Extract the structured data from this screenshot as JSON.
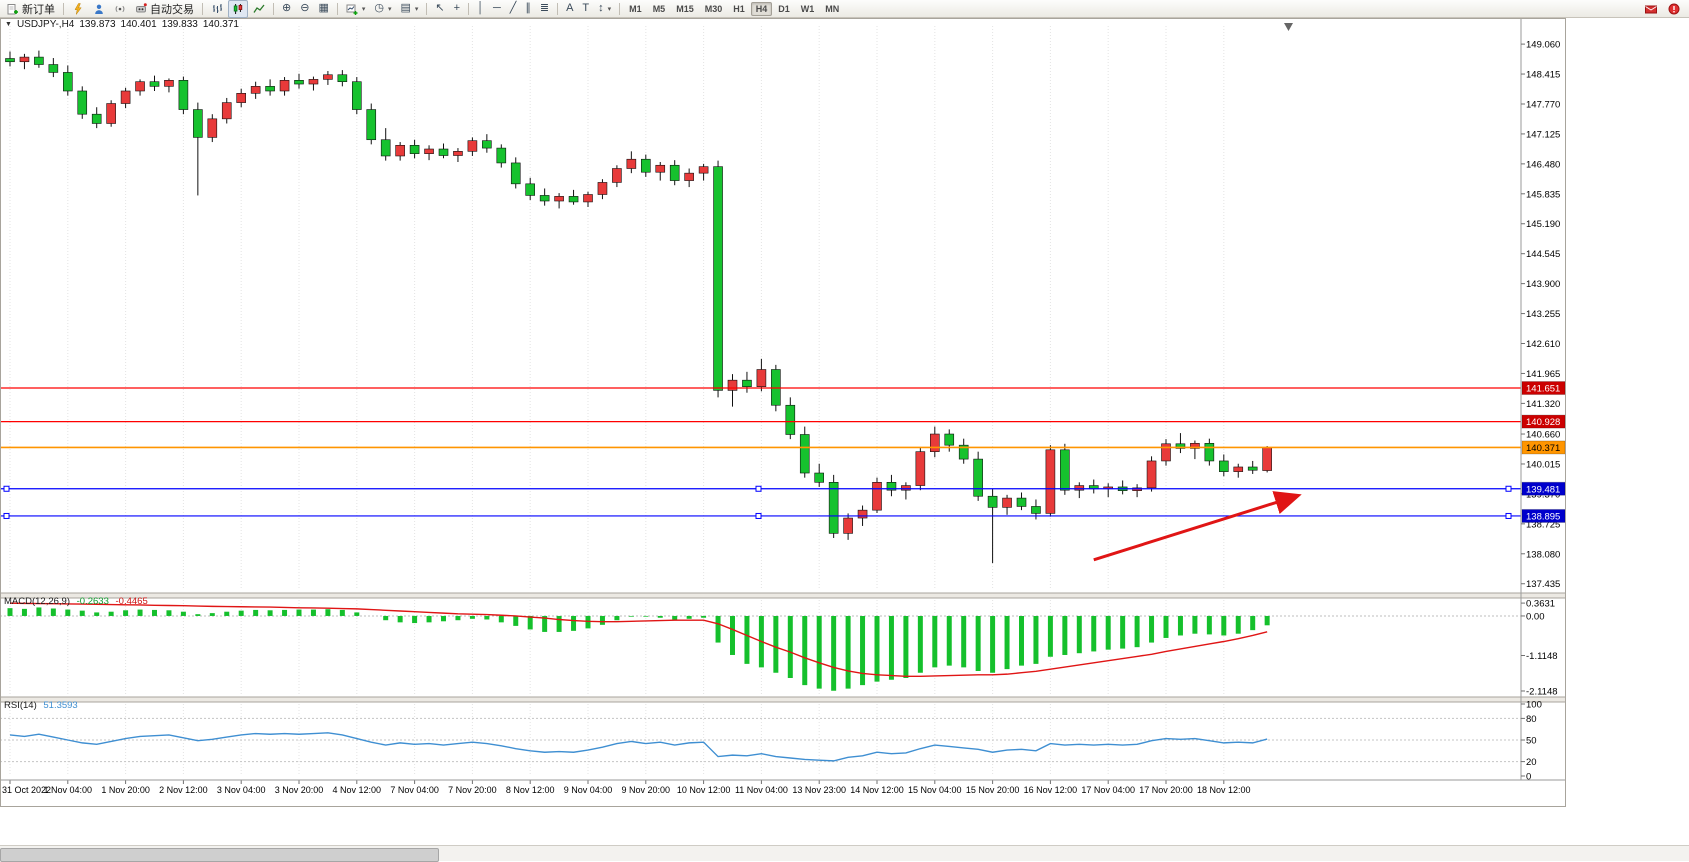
{
  "toolbar": {
    "new_order": "新订单",
    "auto_trading": "自动交易",
    "timeframes": [
      "M1",
      "M5",
      "M15",
      "M30",
      "H1",
      "H4",
      "D1",
      "W1",
      "MN"
    ],
    "active_timeframe": "H4"
  },
  "icons": {
    "one_click": "▼",
    "zoom_in": "⊕",
    "zoom_out": "⊖",
    "tile": "▦",
    "periods": "◷",
    "templates": "▤",
    "cursor": "↖",
    "crosshair": "+",
    "vline": "│",
    "hline": "─",
    "trendline": "╱",
    "channel": "∥",
    "fibonacci": "≣",
    "text": "A",
    "label": "T",
    "arrows": "↕",
    "caret": "▾",
    "indicators": "+"
  },
  "chart_header": {
    "symbol_period": "USDJPY-,H4",
    "open": "139.873",
    "high": "140.401",
    "low": "139.833",
    "close": "140.371"
  },
  "price_axis": {
    "ticks": [
      "149.060",
      "148.415",
      "147.770",
      "147.125",
      "146.480",
      "145.835",
      "145.190",
      "144.545",
      "143.900",
      "143.255",
      "142.610",
      "141.965",
      "141.320",
      "140.660",
      "140.015",
      "139.370",
      "138.725",
      "138.080",
      "137.435"
    ],
    "badges": [
      {
        "text": "141.651",
        "price": 141.651,
        "bg": "#cc0000",
        "fg": "#ffffff"
      },
      {
        "text": "140.928",
        "price": 140.928,
        "bg": "#cc0000",
        "fg": "#ffffff"
      },
      {
        "text": "140.371",
        "price": 140.371,
        "bg": "#ff9500",
        "fg": "#000000"
      },
      {
        "text": "139.481",
        "price": 139.481,
        "bg": "#0000cc",
        "fg": "#ffffff"
      },
      {
        "text": "138.895",
        "price": 138.895,
        "bg": "#0000cc",
        "fg": "#ffffff"
      }
    ]
  },
  "time_axis": {
    "labels": [
      "31 Oct 2022",
      "1 Nov 04:00",
      "1 Nov 20:00",
      "2 Nov 12:00",
      "3 Nov 04:00",
      "3 Nov 20:00",
      "4 Nov 12:00",
      "7 Nov 04:00",
      "7 Nov 20:00",
      "8 Nov 12:00",
      "9 Nov 04:00",
      "9 Nov 20:00",
      "10 Nov 12:00",
      "11 Nov 04:00",
      "13 Nov 23:00",
      "14 Nov 12:00",
      "15 Nov 04:00",
      "15 Nov 20:00",
      "16 Nov 12:00",
      "17 Nov 04:00",
      "17 Nov 20:00",
      "18 Nov 12:00"
    ]
  },
  "indicators": {
    "macd": {
      "name": "MACD(12,26,9)",
      "value_main": "-0.2633",
      "value_signal": "-0.4465",
      "ticks": [
        "0.3631",
        "0.00",
        "-1.1148",
        "-2.1148"
      ]
    },
    "rsi": {
      "name": "RSI(14)",
      "value": "51.3593",
      "ticks": [
        "100",
        "80",
        "50",
        "20",
        "0"
      ]
    }
  },
  "chart_data": [
    {
      "type": "candlestick",
      "title": "USDJPY- H4",
      "ylim": [
        137.3,
        149.45
      ],
      "up_color": "#e83a3a",
      "down_color": "#16c22e",
      "wick_color": "#111111",
      "levels": [
        {
          "price": 141.651,
          "color": "#ff0000",
          "width": 1.2
        },
        {
          "price": 140.928,
          "color": "#ff0000",
          "width": 1.2
        },
        {
          "price": 140.371,
          "color": "#ff9500",
          "width": 1.6
        },
        {
          "price": 139.481,
          "color": "#0000ff",
          "width": 1.2,
          "handles": true
        },
        {
          "price": 138.895,
          "color": "#0000ff",
          "width": 1.2,
          "handles": true
        }
      ],
      "annotation_arrow": {
        "from_index": 75,
        "from_price": 137.95,
        "to_index": 89,
        "to_price": 139.32,
        "color": "#e01515"
      },
      "candles": [
        [
          148.75,
          148.9,
          148.58,
          148.68
        ],
        [
          148.68,
          148.85,
          148.52,
          148.78
        ],
        [
          148.78,
          148.92,
          148.55,
          148.62
        ],
        [
          148.62,
          148.76,
          148.35,
          148.45
        ],
        [
          148.45,
          148.6,
          147.95,
          148.05
        ],
        [
          148.05,
          148.15,
          147.45,
          147.55
        ],
        [
          147.55,
          147.7,
          147.25,
          147.35
        ],
        [
          147.35,
          147.85,
          147.28,
          147.78
        ],
        [
          147.78,
          148.12,
          147.68,
          148.05
        ],
        [
          148.05,
          148.3,
          147.95,
          148.25
        ],
        [
          148.25,
          148.38,
          148.05,
          148.15
        ],
        [
          148.15,
          148.32,
          148.02,
          148.28
        ],
        [
          148.28,
          148.36,
          147.55,
          147.65
        ],
        [
          147.65,
          147.8,
          145.8,
          147.05
        ],
        [
          147.05,
          147.55,
          146.95,
          147.45
        ],
        [
          147.45,
          147.9,
          147.35,
          147.8
        ],
        [
          147.8,
          148.1,
          147.7,
          148.0
        ],
        [
          148.0,
          148.25,
          147.88,
          148.15
        ],
        [
          148.15,
          148.3,
          147.95,
          148.05
        ],
        [
          148.05,
          148.35,
          147.95,
          148.28
        ],
        [
          148.28,
          148.42,
          148.1,
          148.2
        ],
        [
          148.2,
          148.36,
          148.06,
          148.3
        ],
        [
          148.3,
          148.48,
          148.18,
          148.4
        ],
        [
          148.4,
          148.5,
          148.15,
          148.25
        ],
        [
          148.25,
          148.35,
          147.55,
          147.65
        ],
        [
          147.65,
          147.78,
          146.9,
          147.0
        ],
        [
          147.0,
          147.25,
          146.55,
          146.65
        ],
        [
          146.65,
          146.95,
          146.55,
          146.88
        ],
        [
          146.88,
          147.0,
          146.6,
          146.7
        ],
        [
          146.7,
          146.88,
          146.56,
          146.8
        ],
        [
          146.8,
          146.92,
          146.6,
          146.66
        ],
        [
          146.66,
          146.82,
          146.52,
          146.75
        ],
        [
          146.75,
          147.05,
          146.65,
          146.98
        ],
        [
          146.98,
          147.12,
          146.72,
          146.82
        ],
        [
          146.82,
          146.9,
          146.4,
          146.5
        ],
        [
          146.5,
          146.62,
          145.95,
          146.05
        ],
        [
          146.05,
          146.18,
          145.7,
          145.8
        ],
        [
          145.8,
          145.95,
          145.58,
          145.68
        ],
        [
          145.68,
          145.85,
          145.52,
          145.78
        ],
        [
          145.78,
          145.92,
          145.6,
          145.66
        ],
        [
          145.66,
          145.88,
          145.55,
          145.82
        ],
        [
          145.82,
          146.15,
          145.72,
          146.08
        ],
        [
          146.08,
          146.45,
          145.98,
          146.38
        ],
        [
          146.38,
          146.75,
          146.28,
          146.58
        ],
        [
          146.58,
          146.68,
          146.2,
          146.3
        ],
        [
          146.3,
          146.52,
          146.12,
          146.45
        ],
        [
          146.45,
          146.56,
          146.02,
          146.12
        ],
        [
          146.12,
          146.38,
          145.98,
          146.28
        ],
        [
          146.28,
          146.48,
          146.12,
          146.42
        ],
        [
          146.42,
          146.55,
          141.45,
          141.6
        ],
        [
          141.6,
          141.95,
          141.25,
          141.82
        ],
        [
          141.82,
          142.0,
          141.55,
          141.68
        ],
        [
          141.68,
          142.28,
          141.58,
          142.05
        ],
        [
          142.05,
          142.15,
          141.15,
          141.28
        ],
        [
          141.28,
          141.45,
          140.55,
          140.65
        ],
        [
          140.65,
          140.82,
          139.72,
          139.82
        ],
        [
          139.82,
          140.02,
          139.52,
          139.62
        ],
        [
          139.62,
          139.78,
          138.42,
          138.52
        ],
        [
          138.52,
          138.95,
          138.38,
          138.85
        ],
        [
          138.85,
          139.12,
          138.68,
          139.02
        ],
        [
          139.02,
          139.72,
          138.96,
          139.62
        ],
        [
          139.62,
          139.78,
          139.32,
          139.45
        ],
        [
          139.45,
          139.62,
          139.25,
          139.55
        ],
        [
          139.55,
          140.38,
          139.45,
          140.28
        ],
        [
          140.28,
          140.82,
          140.16,
          140.66
        ],
        [
          140.66,
          140.76,
          140.28,
          140.42
        ],
        [
          140.42,
          140.56,
          140.02,
          140.12
        ],
        [
          140.12,
          140.28,
          139.22,
          139.32
        ],
        [
          139.32,
          139.48,
          137.88,
          139.08
        ],
        [
          139.08,
          139.35,
          138.92,
          139.28
        ],
        [
          139.28,
          139.4,
          139.02,
          139.1
        ],
        [
          139.1,
          139.25,
          138.82,
          138.95
        ],
        [
          138.95,
          140.42,
          138.88,
          140.32
        ],
        [
          140.32,
          140.45,
          139.35,
          139.45
        ],
        [
          139.45,
          139.62,
          139.28,
          139.55
        ],
        [
          139.55,
          139.68,
          139.38,
          139.48
        ],
        [
          139.48,
          139.6,
          139.3,
          139.52
        ],
        [
          139.52,
          139.66,
          139.36,
          139.44
        ],
        [
          139.44,
          139.58,
          139.3,
          139.5
        ],
        [
          139.5,
          140.18,
          139.42,
          140.08
        ],
        [
          140.08,
          140.55,
          139.98,
          140.45
        ],
        [
          140.45,
          140.68,
          140.25,
          140.35
        ],
        [
          140.35,
          140.52,
          140.12,
          140.46
        ],
        [
          140.46,
          140.56,
          139.98,
          140.08
        ],
        [
          140.08,
          140.22,
          139.75,
          139.85
        ],
        [
          139.85,
          140.02,
          139.72,
          139.95
        ],
        [
          139.95,
          140.08,
          139.8,
          139.88
        ],
        [
          139.873,
          140.401,
          139.833,
          140.371
        ]
      ]
    },
    {
      "type": "bar",
      "name": "MACD",
      "ylim": [
        -2.2,
        0.45
      ],
      "colors": {
        "histogram": "#15c02c",
        "signal": "#e01515"
      },
      "histogram": [
        0.22,
        0.2,
        0.24,
        0.21,
        0.18,
        0.15,
        0.1,
        0.12,
        0.16,
        0.18,
        0.17,
        0.16,
        0.12,
        0.05,
        0.08,
        0.12,
        0.15,
        0.17,
        0.16,
        0.17,
        0.18,
        0.18,
        0.19,
        0.17,
        0.1,
        0.0,
        -0.12,
        -0.18,
        -0.2,
        -0.18,
        -0.15,
        -0.12,
        -0.08,
        -0.1,
        -0.18,
        -0.28,
        -0.38,
        -0.45,
        -0.45,
        -0.42,
        -0.35,
        -0.25,
        -0.12,
        -0.02,
        -0.02,
        -0.05,
        -0.1,
        -0.08,
        -0.05,
        -0.75,
        -1.1,
        -1.35,
        -1.45,
        -1.6,
        -1.75,
        -1.95,
        -2.05,
        -2.11,
        -2.05,
        -1.95,
        -1.85,
        -1.8,
        -1.75,
        -1.6,
        -1.45,
        -1.4,
        -1.45,
        -1.55,
        -1.6,
        -1.5,
        -1.4,
        -1.35,
        -1.15,
        -1.1,
        -1.05,
        -1.0,
        -0.95,
        -0.92,
        -0.88,
        -0.75,
        -0.62,
        -0.55,
        -0.5,
        -0.52,
        -0.55,
        -0.5,
        -0.4,
        -0.2633
      ],
      "signal": [
        0.36,
        0.355,
        0.35,
        0.345,
        0.34,
        0.335,
        0.33,
        0.32,
        0.315,
        0.31,
        0.3,
        0.295,
        0.29,
        0.28,
        0.27,
        0.265,
        0.26,
        0.255,
        0.25,
        0.24,
        0.23,
        0.225,
        0.22,
        0.21,
        0.2,
        0.18,
        0.16,
        0.14,
        0.12,
        0.1,
        0.08,
        0.06,
        0.05,
        0.04,
        0.02,
        0.0,
        -0.03,
        -0.06,
        -0.1,
        -0.13,
        -0.15,
        -0.16,
        -0.16,
        -0.15,
        -0.14,
        -0.13,
        -0.12,
        -0.12,
        -0.12,
        -0.22,
        -0.38,
        -0.55,
        -0.72,
        -0.88,
        -1.02,
        -1.18,
        -1.32,
        -1.45,
        -1.55,
        -1.62,
        -1.66,
        -1.68,
        -1.7,
        -1.7,
        -1.69,
        -1.68,
        -1.67,
        -1.66,
        -1.66,
        -1.64,
        -1.6,
        -1.56,
        -1.5,
        -1.44,
        -1.38,
        -1.32,
        -1.26,
        -1.2,
        -1.14,
        -1.08,
        -1.0,
        -0.93,
        -0.86,
        -0.79,
        -0.72,
        -0.64,
        -0.55,
        -0.4465
      ]
    },
    {
      "type": "line",
      "name": "RSI",
      "ylim": [
        0,
        100
      ],
      "levels": [
        80,
        50,
        20
      ],
      "color": "#3f8fd2",
      "values": [
        57,
        55,
        58,
        54,
        50,
        46,
        44,
        48,
        52,
        55,
        56,
        57,
        53,
        49,
        51,
        54,
        57,
        59,
        58,
        59,
        58,
        59,
        60,
        57,
        52,
        47,
        43,
        46,
        44,
        45,
        43,
        45,
        47,
        45,
        42,
        38,
        35,
        33,
        34,
        33,
        36,
        40,
        45,
        48,
        45,
        47,
        43,
        46,
        47,
        27,
        29,
        28,
        31,
        27,
        25,
        23,
        22,
        21,
        26,
        28,
        33,
        31,
        32,
        38,
        43,
        41,
        39,
        37,
        33,
        36,
        37,
        35,
        45,
        43,
        44,
        43,
        44,
        43,
        44,
        49,
        52,
        51,
        52,
        49,
        46,
        47,
        46,
        51.36
      ]
    }
  ]
}
